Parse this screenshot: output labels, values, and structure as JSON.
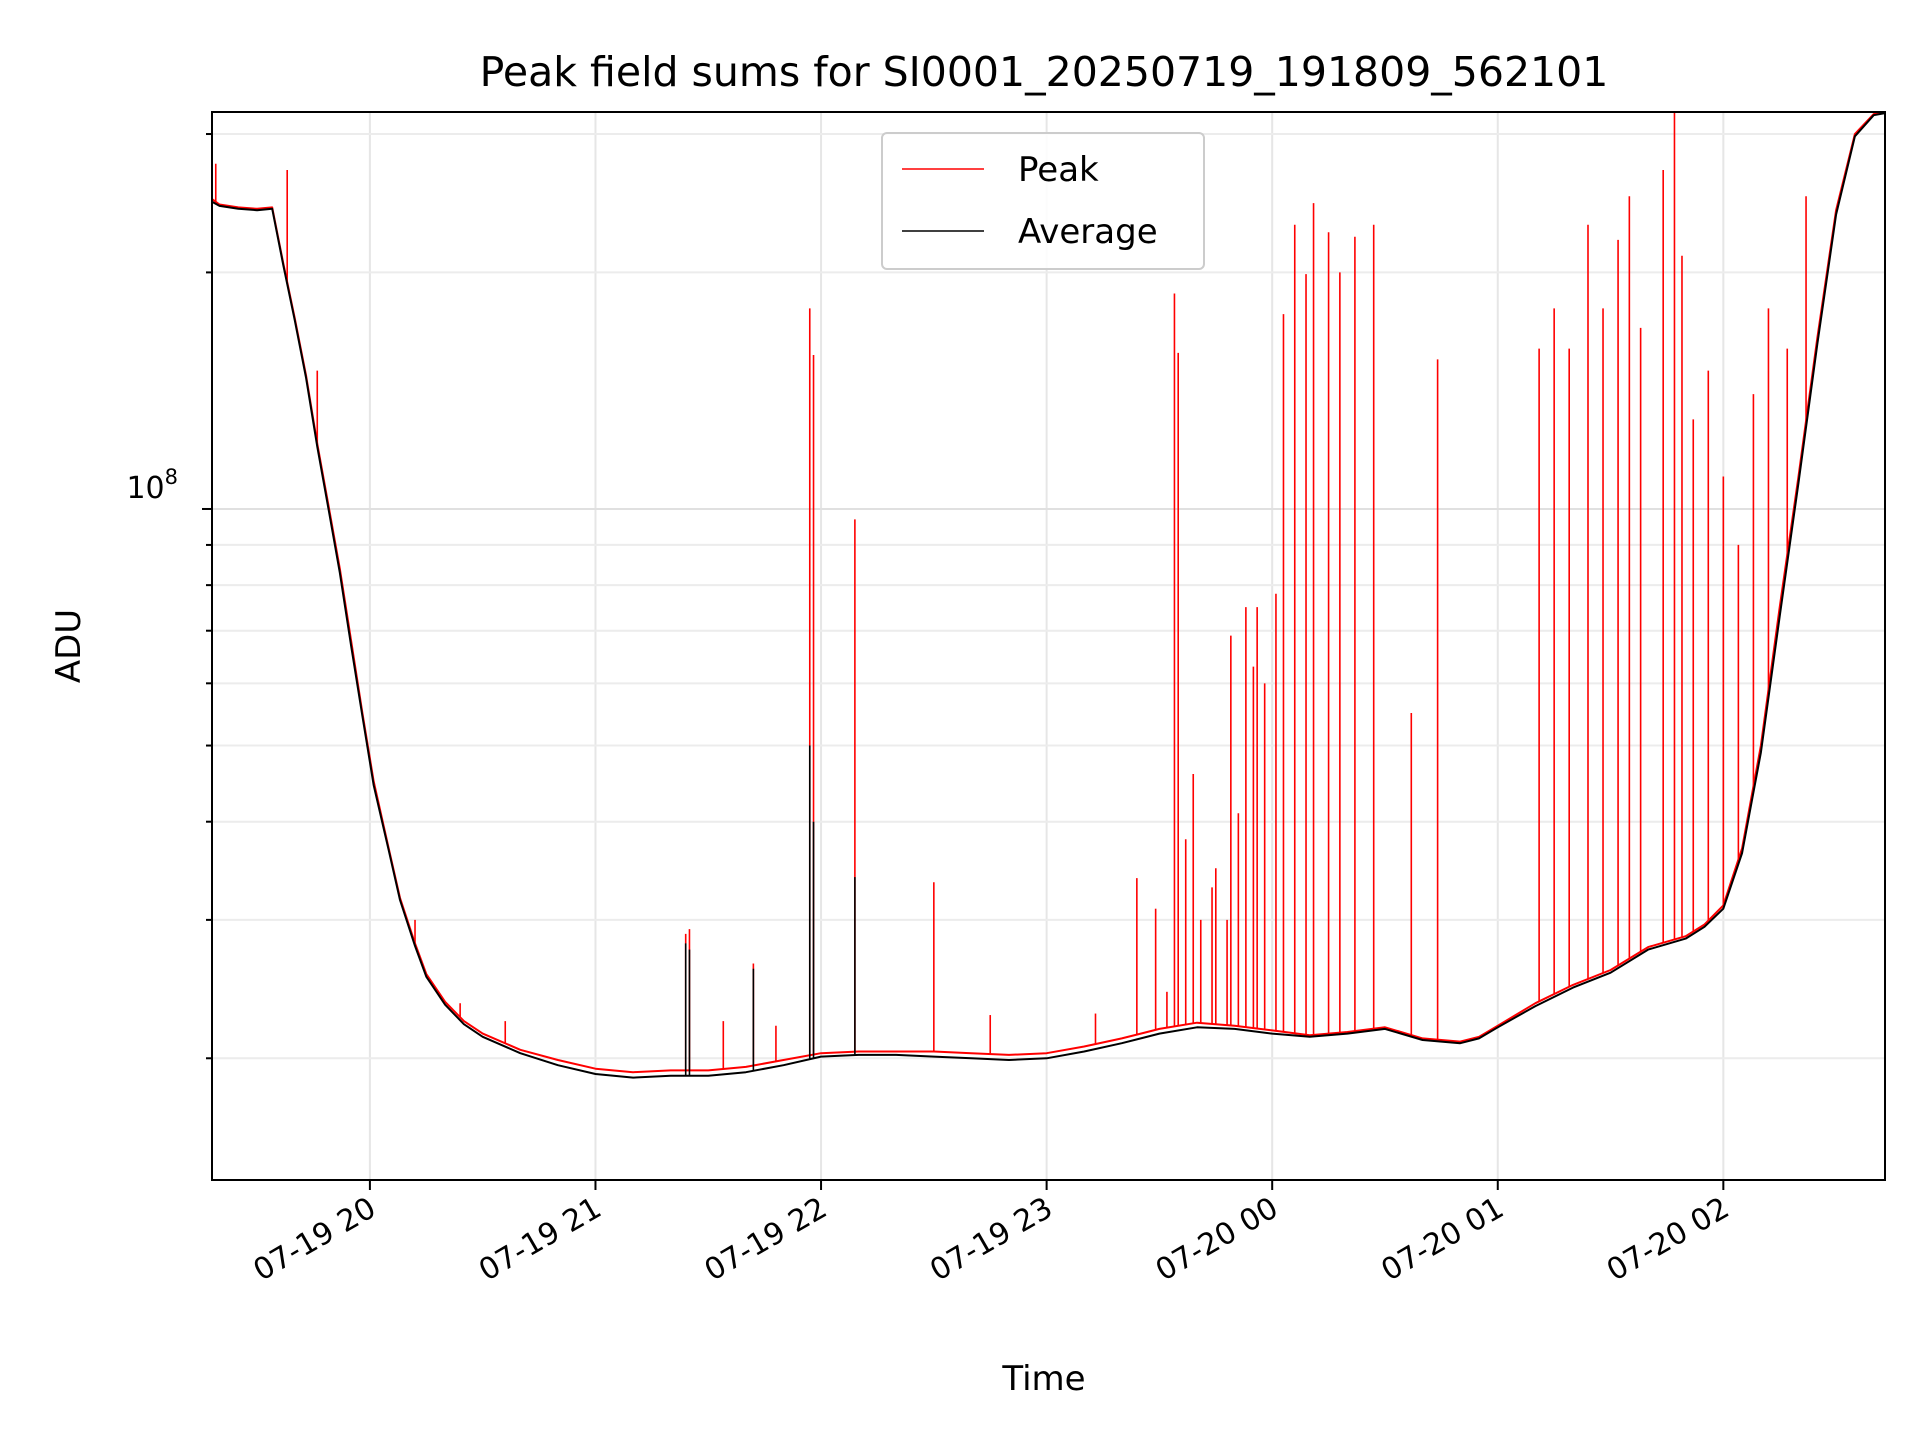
{
  "chart_data": {
    "type": "line",
    "title": "Peak field sums for SI0001_20250719_191809_562101",
    "xlabel": "Time",
    "ylabel": "ADU",
    "yscale": "log",
    "grid": true,
    "legend_position": "top-center",
    "xlim": [
      "2025-07-19 19:18",
      "2025-07-20 02:43"
    ],
    "ylim": [
      14000000,
      320000000
    ],
    "x_ticks": [
      "07-19 20",
      "07-19 21",
      "07-19 22",
      "07-19 23",
      "07-20 00",
      "07-20 01",
      "07-20 02"
    ],
    "y_tick_label": {
      "base": "10",
      "exponent": "8",
      "value": 100000000
    },
    "series": [
      {
        "name": "Peak",
        "color": "#ff0000",
        "points": [
          [
            "2025-07-19 19:18",
            248000000
          ],
          [
            "2025-07-19 19:20",
            244000000
          ],
          [
            "2025-07-19 19:25",
            242000000
          ],
          [
            "2025-07-19 19:30",
            241000000
          ],
          [
            "2025-07-19 19:34",
            242000000
          ],
          [
            "2025-07-19 19:37",
            205000000
          ],
          [
            "2025-07-19 19:40",
            175000000
          ],
          [
            "2025-07-19 19:43",
            148000000
          ],
          [
            "2025-07-19 19:46",
            121000000
          ],
          [
            "2025-07-19 19:49",
            101000000
          ],
          [
            "2025-07-19 19:52",
            84000000
          ],
          [
            "2025-07-19 19:55",
            68000000
          ],
          [
            "2025-07-19 19:58",
            55000000
          ],
          [
            "2025-07-19 20:01",
            45000000
          ],
          [
            "2025-07-19 20:05",
            37000000
          ],
          [
            "2025-07-19 20:08",
            32000000
          ],
          [
            "2025-07-19 20:12",
            28000000
          ],
          [
            "2025-07-19 20:15",
            25600000
          ],
          [
            "2025-07-19 20:20",
            23600000
          ],
          [
            "2025-07-19 20:25",
            22300000
          ],
          [
            "2025-07-19 20:30",
            21500000
          ],
          [
            "2025-07-19 20:40",
            20500000
          ],
          [
            "2025-07-19 20:50",
            19900000
          ],
          [
            "2025-07-19 21:00",
            19400000
          ],
          [
            "2025-07-19 21:10",
            19200000
          ],
          [
            "2025-07-19 21:20",
            19300000
          ],
          [
            "2025-07-19 21:30",
            19300000
          ],
          [
            "2025-07-19 21:40",
            19500000
          ],
          [
            "2025-07-19 21:50",
            19900000
          ],
          [
            "2025-07-19 22:00",
            20300000
          ],
          [
            "2025-07-19 22:10",
            20400000
          ],
          [
            "2025-07-19 22:20",
            20400000
          ],
          [
            "2025-07-19 22:30",
            20400000
          ],
          [
            "2025-07-19 22:40",
            20300000
          ],
          [
            "2025-07-19 22:50",
            20200000
          ],
          [
            "2025-07-19 23:00",
            20300000
          ],
          [
            "2025-07-19 23:10",
            20700000
          ],
          [
            "2025-07-19 23:20",
            21200000
          ],
          [
            "2025-07-19 23:30",
            21800000
          ],
          [
            "2025-07-19 23:40",
            22200000
          ],
          [
            "2025-07-19 23:50",
            22000000
          ],
          [
            "2025-07-20 00:00",
            21700000
          ],
          [
            "2025-07-20 00:10",
            21400000
          ],
          [
            "2025-07-20 00:20",
            21600000
          ],
          [
            "2025-07-20 00:30",
            21900000
          ],
          [
            "2025-07-20 00:40",
            21200000
          ],
          [
            "2025-07-20 00:50",
            21000000
          ],
          [
            "2025-07-20 00:55",
            21300000
          ],
          [
            "2025-07-20 01:00",
            22000000
          ],
          [
            "2025-07-20 01:10",
            23500000
          ],
          [
            "2025-07-20 01:20",
            24800000
          ],
          [
            "2025-07-20 01:30",
            25900000
          ],
          [
            "2025-07-20 01:40",
            27700000
          ],
          [
            "2025-07-20 01:50",
            28600000
          ],
          [
            "2025-07-20 01:55",
            29600000
          ],
          [
            "2025-07-20 02:00",
            31300000
          ],
          [
            "2025-07-20 02:05",
            37000000
          ],
          [
            "2025-07-20 02:10",
            50000000
          ],
          [
            "2025-07-20 02:15",
            75000000
          ],
          [
            "2025-07-20 02:20",
            110000000
          ],
          [
            "2025-07-20 02:25",
            165000000
          ],
          [
            "2025-07-20 02:30",
            240000000
          ],
          [
            "2025-07-20 02:35",
            300000000
          ],
          [
            "2025-07-20 02:40",
            318000000
          ],
          [
            "2025-07-20 02:43",
            320000000
          ]
        ],
        "spikes": [
          [
            "2025-07-19 19:19",
            275000000
          ],
          [
            "2025-07-19 19:38",
            270000000
          ],
          [
            "2025-07-19 19:46",
            150000000
          ],
          [
            "2025-07-19 20:12",
            30000000
          ],
          [
            "2025-07-19 20:24",
            23500000
          ],
          [
            "2025-07-19 20:36",
            22300000
          ],
          [
            "2025-07-19 21:24",
            28800000
          ],
          [
            "2025-07-19 21:25",
            29200000
          ],
          [
            "2025-07-19 21:34",
            22300000
          ],
          [
            "2025-07-19 21:42",
            26400000
          ],
          [
            "2025-07-19 21:48",
            22000000
          ],
          [
            "2025-07-19 21:57",
            180000000
          ],
          [
            "2025-07-19 21:58",
            157000000
          ],
          [
            "2025-07-19 22:09",
            97000000
          ],
          [
            "2025-07-19 22:30",
            33500000
          ],
          [
            "2025-07-19 22:45",
            22700000
          ],
          [
            "2025-07-19 23:13",
            22800000
          ],
          [
            "2025-07-19 23:24",
            33900000
          ],
          [
            "2025-07-19 23:29",
            31000000
          ],
          [
            "2025-07-19 23:32",
            24300000
          ],
          [
            "2025-07-19 23:34",
            188000000
          ],
          [
            "2025-07-19 23:35",
            158000000
          ],
          [
            "2025-07-19 23:37",
            38000000
          ],
          [
            "2025-07-19 23:39",
            46000000
          ],
          [
            "2025-07-19 23:41",
            30000000
          ],
          [
            "2025-07-19 23:44",
            33000000
          ],
          [
            "2025-07-19 23:45",
            34900000
          ],
          [
            "2025-07-19 23:48",
            30000000
          ],
          [
            "2025-07-19 23:49",
            69000000
          ],
          [
            "2025-07-19 23:51",
            41000000
          ],
          [
            "2025-07-19 23:53",
            75000000
          ],
          [
            "2025-07-19 23:55",
            63000000
          ],
          [
            "2025-07-19 23:56",
            75000000
          ],
          [
            "2025-07-19 23:58",
            60000000
          ],
          [
            "2025-07-20 00:01",
            78000000
          ],
          [
            "2025-07-20 00:03",
            177000000
          ],
          [
            "2025-07-20 00:06",
            230000000
          ],
          [
            "2025-07-20 00:09",
            199000000
          ],
          [
            "2025-07-20 00:11",
            245000000
          ],
          [
            "2025-07-20 00:15",
            225000000
          ],
          [
            "2025-07-20 00:18",
            200000000
          ],
          [
            "2025-07-20 00:22",
            222000000
          ],
          [
            "2025-07-20 00:27",
            230000000
          ],
          [
            "2025-07-20 00:37",
            55000000
          ],
          [
            "2025-07-20 00:44",
            155000000
          ],
          [
            "2025-07-20 01:11",
            160000000
          ],
          [
            "2025-07-20 01:15",
            180000000
          ],
          [
            "2025-07-20 01:19",
            160000000
          ],
          [
            "2025-07-20 01:24",
            230000000
          ],
          [
            "2025-07-20 01:28",
            180000000
          ],
          [
            "2025-07-20 01:32",
            220000000
          ],
          [
            "2025-07-20 01:35",
            250000000
          ],
          [
            "2025-07-20 01:38",
            170000000
          ],
          [
            "2025-07-20 01:44",
            270000000
          ],
          [
            "2025-07-20 01:47",
            320000000
          ],
          [
            "2025-07-20 01:49",
            210000000
          ],
          [
            "2025-07-20 01:52",
            130000000
          ],
          [
            "2025-07-20 01:56",
            150000000
          ],
          [
            "2025-07-20 02:00",
            110000000
          ],
          [
            "2025-07-20 02:04",
            90000000
          ],
          [
            "2025-07-20 02:08",
            140000000
          ],
          [
            "2025-07-20 02:12",
            180000000
          ],
          [
            "2025-07-20 02:17",
            160000000
          ],
          [
            "2025-07-20 02:22",
            250000000
          ]
        ]
      },
      {
        "name": "Average",
        "color": "#000000",
        "points": [
          [
            "2025-07-19 19:18",
            246000000
          ],
          [
            "2025-07-19 19:20",
            243000000
          ],
          [
            "2025-07-19 19:25",
            241000000
          ],
          [
            "2025-07-19 19:30",
            240000000
          ],
          [
            "2025-07-19 19:34",
            241000000
          ],
          [
            "2025-07-19 19:37",
            204000000
          ],
          [
            "2025-07-19 19:40",
            174000000
          ],
          [
            "2025-07-19 19:43",
            147000000
          ],
          [
            "2025-07-19 19:46",
            120000000
          ],
          [
            "2025-07-19 19:49",
            100000000
          ],
          [
            "2025-07-19 19:52",
            83000000
          ],
          [
            "2025-07-19 19:55",
            67000000
          ],
          [
            "2025-07-19 19:58",
            54500000
          ],
          [
            "2025-07-19 20:01",
            44500000
          ],
          [
            "2025-07-19 20:05",
            36800000
          ],
          [
            "2025-07-19 20:08",
            31800000
          ],
          [
            "2025-07-19 20:12",
            27800000
          ],
          [
            "2025-07-19 20:15",
            25400000
          ],
          [
            "2025-07-19 20:20",
            23400000
          ],
          [
            "2025-07-19 20:25",
            22100000
          ],
          [
            "2025-07-19 20:30",
            21300000
          ],
          [
            "2025-07-19 20:40",
            20300000
          ],
          [
            "2025-07-19 20:50",
            19600000
          ],
          [
            "2025-07-19 21:00",
            19100000
          ],
          [
            "2025-07-19 21:10",
            18900000
          ],
          [
            "2025-07-19 21:20",
            19000000
          ],
          [
            "2025-07-19 21:30",
            19000000
          ],
          [
            "2025-07-19 21:40",
            19200000
          ],
          [
            "2025-07-19 21:50",
            19600000
          ],
          [
            "2025-07-19 22:00",
            20100000
          ],
          [
            "2025-07-19 22:10",
            20200000
          ],
          [
            "2025-07-19 22:20",
            20200000
          ],
          [
            "2025-07-19 22:30",
            20100000
          ],
          [
            "2025-07-19 22:40",
            20000000
          ],
          [
            "2025-07-19 22:50",
            19900000
          ],
          [
            "2025-07-19 23:00",
            20000000
          ],
          [
            "2025-07-19 23:10",
            20400000
          ],
          [
            "2025-07-19 23:20",
            20900000
          ],
          [
            "2025-07-19 23:30",
            21500000
          ],
          [
            "2025-07-19 23:40",
            21900000
          ],
          [
            "2025-07-19 23:50",
            21800000
          ],
          [
            "2025-07-20 00:00",
            21500000
          ],
          [
            "2025-07-20 00:10",
            21300000
          ],
          [
            "2025-07-20 00:20",
            21500000
          ],
          [
            "2025-07-20 00:30",
            21800000
          ],
          [
            "2025-07-20 00:40",
            21100000
          ],
          [
            "2025-07-20 00:50",
            20900000
          ],
          [
            "2025-07-20 00:55",
            21200000
          ],
          [
            "2025-07-20 01:00",
            21900000
          ],
          [
            "2025-07-20 01:10",
            23300000
          ],
          [
            "2025-07-20 01:20",
            24600000
          ],
          [
            "2025-07-20 01:30",
            25700000
          ],
          [
            "2025-07-20 01:40",
            27500000
          ],
          [
            "2025-07-20 01:50",
            28400000
          ],
          [
            "2025-07-20 01:55",
            29400000
          ],
          [
            "2025-07-20 02:00",
            31000000
          ],
          [
            "2025-07-20 02:05",
            36500000
          ],
          [
            "2025-07-20 02:10",
            49000000
          ],
          [
            "2025-07-20 02:15",
            73000000
          ],
          [
            "2025-07-20 02:20",
            108000000
          ],
          [
            "2025-07-20 02:25",
            162000000
          ],
          [
            "2025-07-20 02:30",
            237000000
          ],
          [
            "2025-07-20 02:35",
            298000000
          ],
          [
            "2025-07-20 02:40",
            317000000
          ],
          [
            "2025-07-20 02:43",
            319000000
          ]
        ],
        "spikes": [
          [
            "2025-07-19 21:24",
            28000000
          ],
          [
            "2025-07-19 21:25",
            27500000
          ],
          [
            "2025-07-19 21:42",
            26000000
          ],
          [
            "2025-07-19 21:57",
            50000000
          ],
          [
            "2025-07-19 21:58",
            40000000
          ],
          [
            "2025-07-19 22:09",
            34000000
          ]
        ]
      }
    ]
  }
}
